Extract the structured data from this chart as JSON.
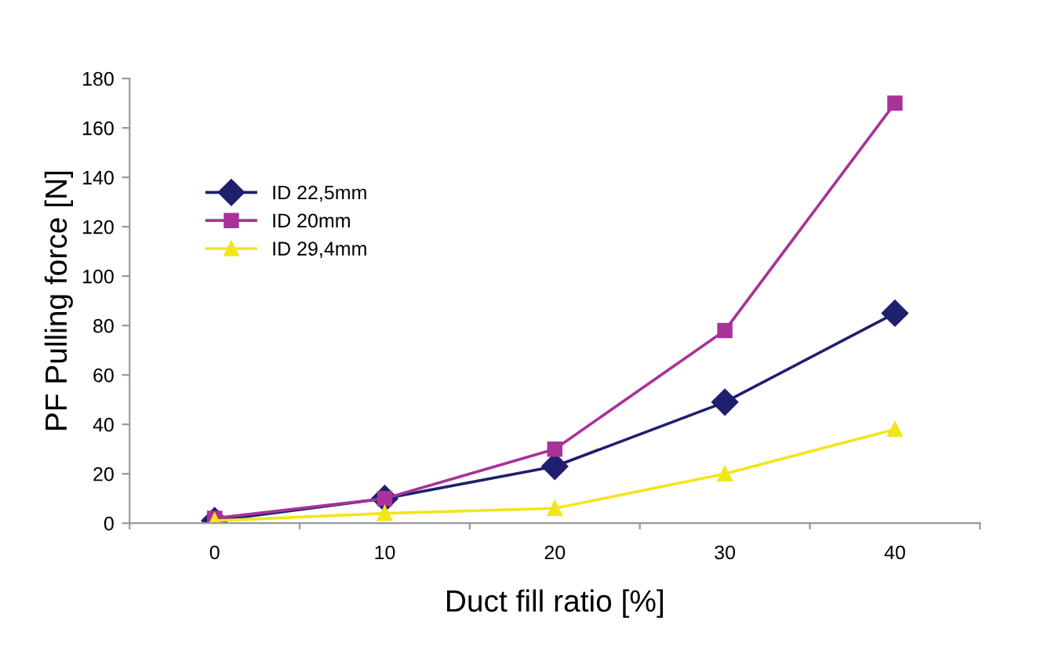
{
  "chart_data": {
    "type": "line",
    "xlabel": "Duct fill ratio [%]",
    "ylabel": "PF Pulling force [N]",
    "categories": [
      "0",
      "10",
      "20",
      "30",
      "40"
    ],
    "series": [
      {
        "name": "ID 22,5mm",
        "color": "#1f1f6e",
        "marker": "diamond",
        "values": [
          1,
          10,
          23,
          49,
          85
        ]
      },
      {
        "name": "ID 20mm",
        "color": "#a8329a",
        "marker": "square",
        "values": [
          2,
          10,
          30,
          78,
          170
        ]
      },
      {
        "name": "ID 29,4mm",
        "color": "#f2e61a",
        "marker": "triangle",
        "values": [
          1,
          4,
          6,
          20,
          38
        ]
      }
    ],
    "ylim": [
      0,
      180
    ],
    "yticks": [
      0,
      20,
      40,
      60,
      80,
      100,
      120,
      140,
      160,
      180
    ],
    "grid": false,
    "legend": "top left",
    "line_style": "solid"
  }
}
